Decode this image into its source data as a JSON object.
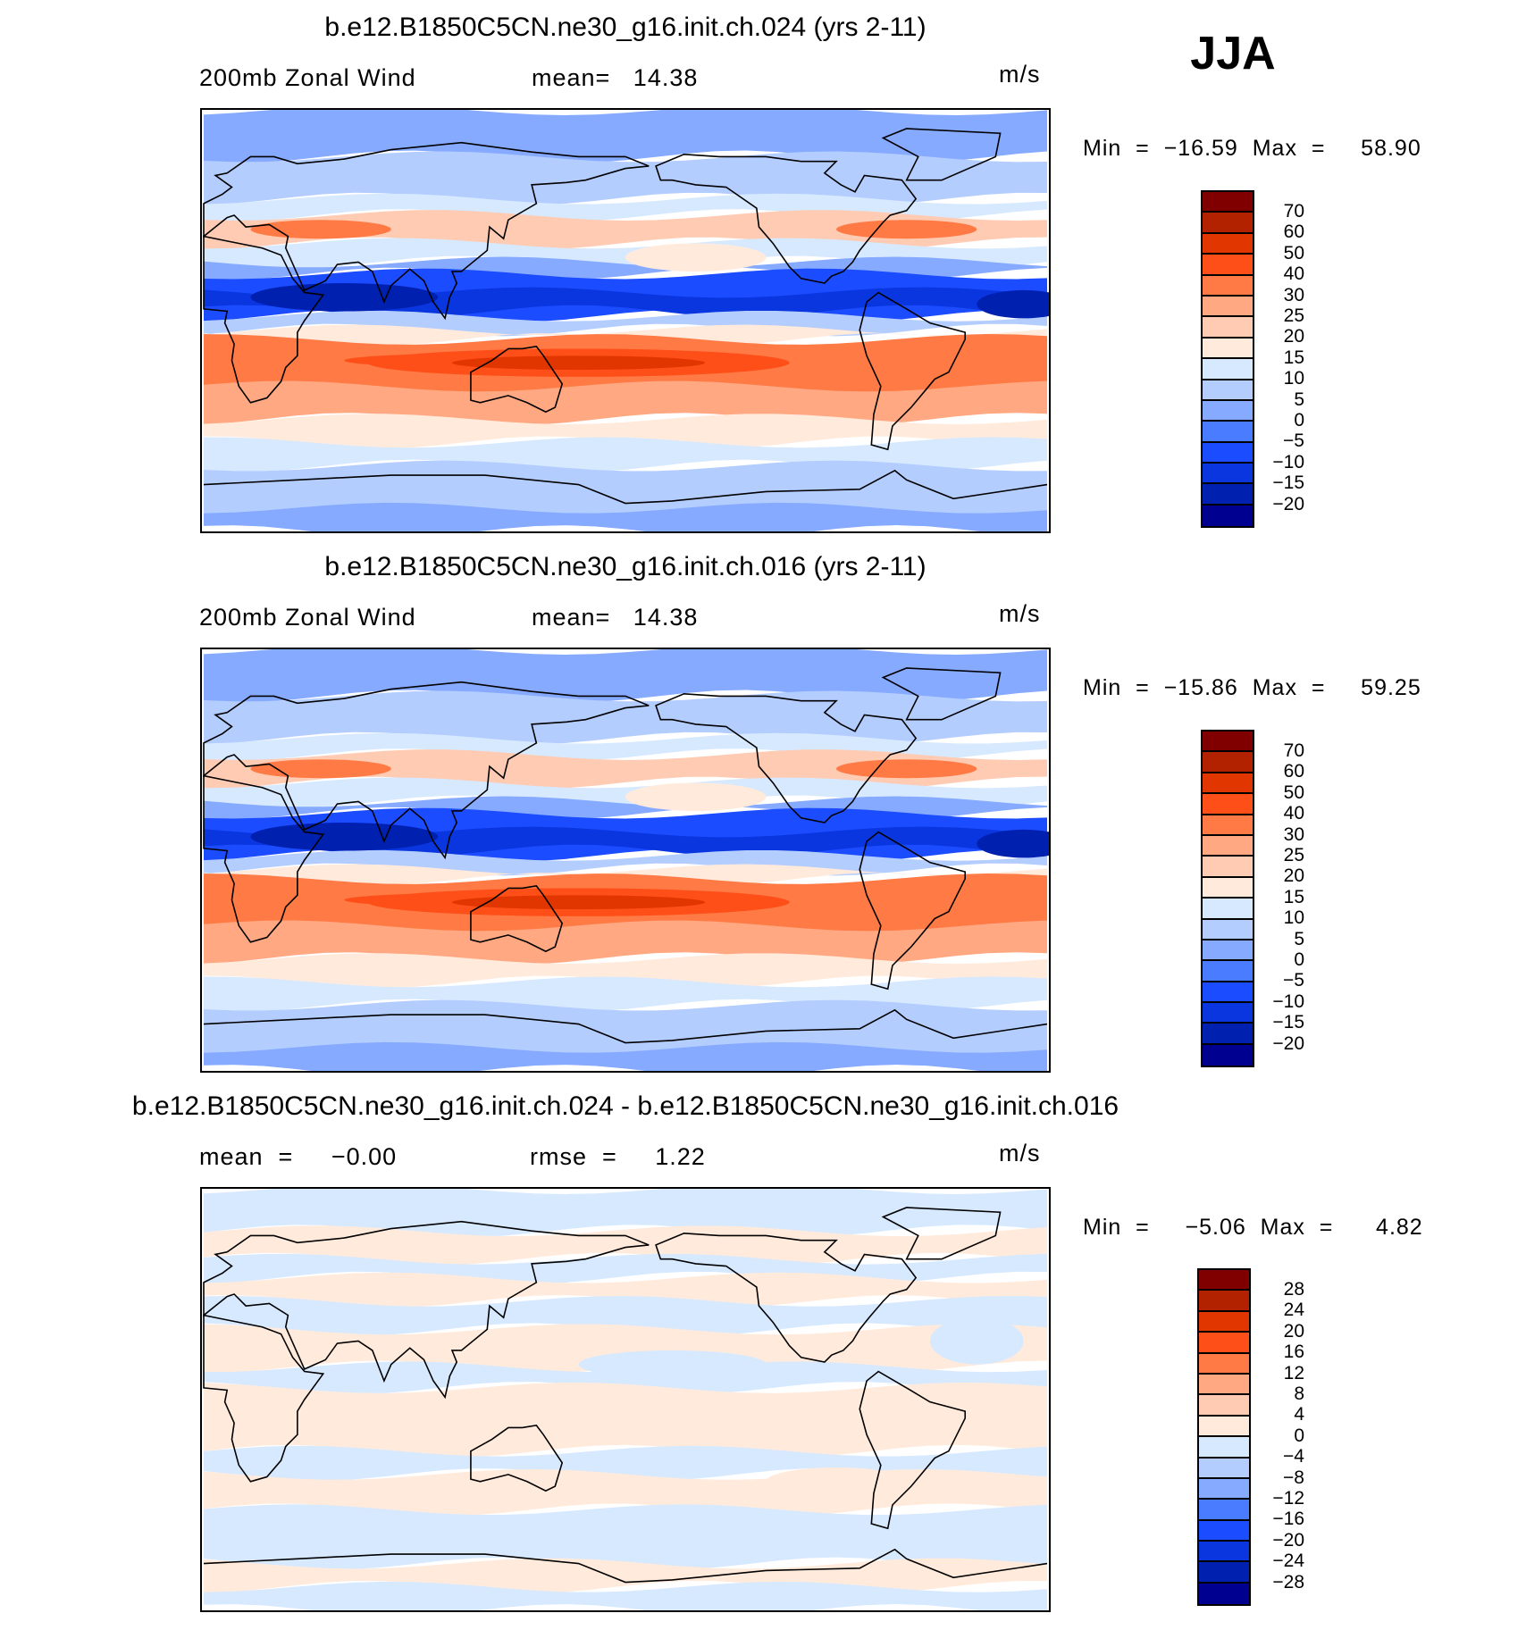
{
  "season": "JJA",
  "colors": [
    "#800000",
    "#b32200",
    "#e23600",
    "#ff4f18",
    "#ff7a45",
    "#ffa882",
    "#ffcbb3",
    "#ffeadb",
    "#d7e9ff",
    "#b4cdff",
    "#86aaff",
    "#4a7cff",
    "#1c4cff",
    "#0a36e0",
    "#0020b0",
    "#000090"
  ],
  "chart_data": [
    {
      "type": "heatmap",
      "title": "b.e12.B1850C5CN.ne30_g16.init.ch.024 (yrs 2-11)",
      "variable": "200mb Zonal Wind",
      "stat1": "mean=   14.38",
      "units": "m/s",
      "minmax": "Min  =  −16.59  Max  =     58.90",
      "levels": [
        "70",
        "60",
        "50",
        "40",
        "30",
        "25",
        "20",
        "15",
        "10",
        "5",
        "0",
        "−5",
        "−10",
        "−15",
        "−20"
      ]
    },
    {
      "type": "heatmap",
      "title": "b.e12.B1850C5CN.ne30_g16.init.ch.016 (yrs 2-11)",
      "variable": "200mb Zonal Wind",
      "stat1": "mean=   14.38",
      "units": "m/s",
      "minmax": "Min  =  −15.86  Max  =     59.25",
      "levels": [
        "70",
        "60",
        "50",
        "40",
        "30",
        "25",
        "20",
        "15",
        "10",
        "5",
        "0",
        "−5",
        "−10",
        "−15",
        "−20"
      ]
    },
    {
      "type": "heatmap",
      "title": "b.e12.B1850C5CN.ne30_g16.init.ch.024 - b.e12.B1850C5CN.ne30_g16.init.ch.016",
      "variable": "mean  =     −0.00",
      "stat1": "rmse  =     1.22",
      "units": "m/s",
      "minmax": "Min  =     −5.06  Max  =      4.82",
      "levels": [
        "28",
        "24",
        "20",
        "16",
        "12",
        "8",
        "4",
        "0",
        "−4",
        "−8",
        "−12",
        "−16",
        "−20",
        "−24",
        "−28"
      ]
    }
  ]
}
